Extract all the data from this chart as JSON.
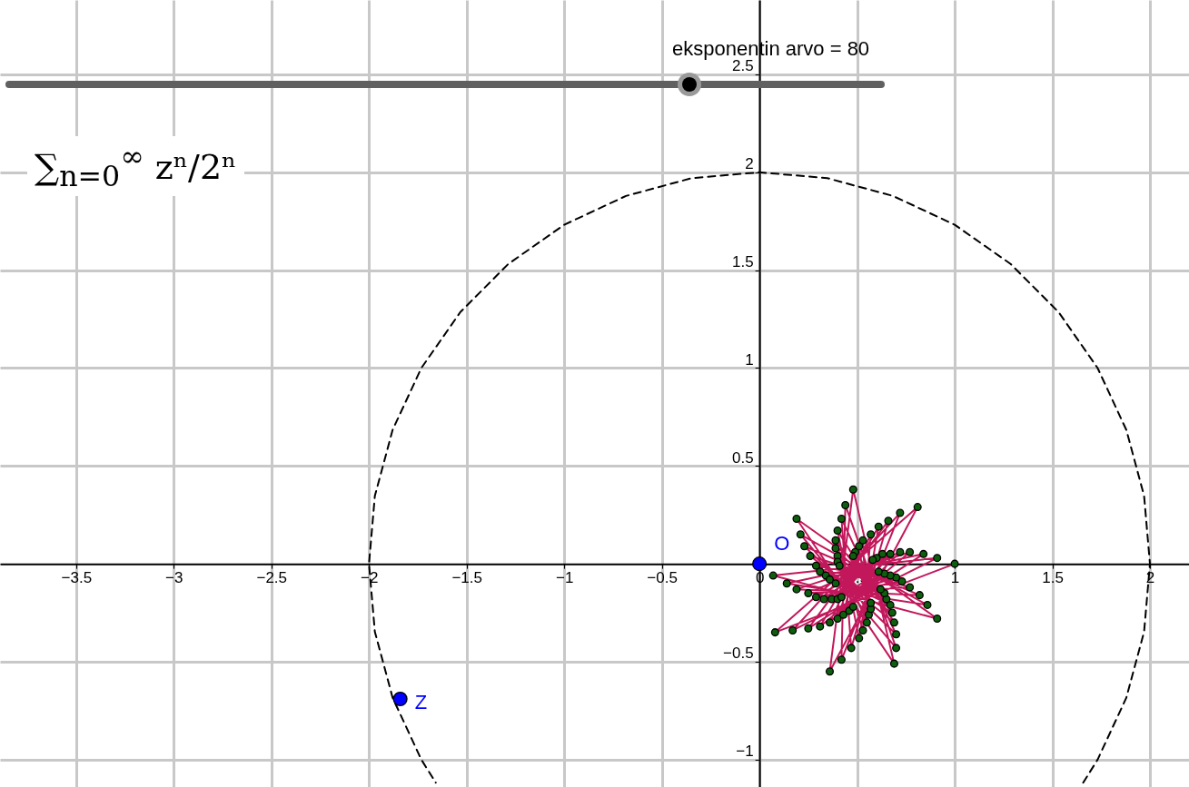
{
  "chart_data": {
    "type": "line",
    "annotations": [
      "eksponentin arvo = 80",
      "∑$_{n=0}$$^{∞}$ zⁿ/2ⁿ"
    ],
    "xlim": [
      -3.89,
      2.2
    ],
    "ylim": [
      -1.14,
      2.88
    ],
    "xticks": [
      -3.5,
      -3,
      -2.5,
      -2,
      -1.5,
      -1,
      -0.5,
      0,
      0.5,
      1,
      1.5,
      2
    ],
    "yticks": [
      -1,
      -0.5,
      0.5,
      1,
      1.5,
      2,
      2.5
    ],
    "grid": true,
    "series": [
      {
        "color": "#000000",
        "line_style": "dashed",
        "marker": "none",
        "x": [
          1.658,
          1.732,
          1.879,
          1.97,
          2,
          1.97,
          1.879,
          1.732,
          1.532,
          1.286,
          1,
          0.684,
          0.347,
          0,
          -0.347,
          -0.684,
          -1,
          -1.286,
          -1.532,
          -1.732,
          -1.879,
          -1.97,
          -2,
          -1.97,
          -1.879,
          -1.732,
          -1.658
        ],
        "values": [
          -1.118,
          -1,
          -0.684,
          -0.347,
          0,
          0.347,
          0.684,
          1,
          1.286,
          1.532,
          1.732,
          1.879,
          1.97,
          2,
          1.97,
          1.879,
          1.732,
          1.532,
          1.286,
          1,
          0.684,
          0.347,
          0,
          -0.347,
          -0.684,
          -1,
          -1.118
        ]
      },
      {
        "color": "#c2185b",
        "line_style": "solid",
        "marker": "none",
        "x": [
          1.0,
          0.08,
          0.81,
          0.36,
          0.48,
          0.69,
          0.19,
          0.91,
          0.07,
          0.91,
          0.17,
          0.72,
          0.42,
          0.44,
          0.7,
          0.21,
          0.86,
          0.14,
          0.84,
          0.25,
          0.66,
          0.47,
          0.42,
          0.7,
          0.23,
          0.82,
          0.19,
          0.77,
          0.31,
          0.61,
          0.51,
          0.4,
          0.69,
          0.26,
          0.77,
          0.25,
          0.72,
          0.36,
          0.57,
          0.53,
          0.39,
          0.68,
          0.29,
          0.73,
          0.29,
          0.67,
          0.4,
          0.53,
          0.55,
          0.39,
          0.67,
          0.31,
          0.7,
          0.33,
          0.63,
          0.43,
          0.51,
          0.56,
          0.4,
          0.65,
          0.34,
          0.67,
          0.37,
          0.6,
          0.46,
          0.49,
          0.57,
          0.4,
          0.64,
          0.36,
          0.64,
          0.4,
          0.58,
          0.48,
          0.48,
          0.57,
          0.41,
          0.62,
          0.39,
          0.61,
          0.42
        ],
        "values": [
          0.0,
          -0.35,
          0.29,
          -0.55,
          0.38,
          -0.51,
          0.23,
          -0.28,
          -0.06,
          0.03,
          -0.34,
          0.26,
          -0.49,
          0.3,
          -0.43,
          0.15,
          -0.21,
          -0.1,
          0.05,
          -0.33,
          0.22,
          -0.43,
          0.23,
          -0.36,
          0.09,
          -0.16,
          -0.13,
          0.06,
          -0.32,
          0.19,
          -0.38,
          0.17,
          -0.3,
          0.04,
          -0.12,
          -0.15,
          0.06,
          -0.3,
          0.15,
          -0.34,
          0.12,
          -0.25,
          -0.01,
          -0.09,
          -0.17,
          0.05,
          -0.28,
          0.12,
          -0.3,
          0.08,
          -0.21,
          -0.04,
          -0.07,
          -0.18,
          0.05,
          -0.26,
          0.09,
          -0.26,
          0.04,
          -0.18,
          -0.06,
          -0.06,
          -0.18,
          0.03,
          -0.24,
          0.06,
          -0.23,
          0.01,
          -0.15,
          -0.08,
          -0.05,
          -0.18,
          0.02,
          -0.22,
          0.04,
          -0.2,
          -0.01,
          -0.13,
          -0.1,
          -0.04,
          -0.17
        ]
      },
      {
        "type": "scatter",
        "color": "#0d5f0d",
        "marker": "circle",
        "x": [
          1.0,
          0.08,
          0.81,
          0.36,
          0.48,
          0.69,
          0.19,
          0.91,
          0.07,
          0.91,
          0.17,
          0.72,
          0.42,
          0.44,
          0.7,
          0.21,
          0.86,
          0.14,
          0.84,
          0.25,
          0.66,
          0.47,
          0.42,
          0.7,
          0.23,
          0.82,
          0.19,
          0.77,
          0.31,
          0.61,
          0.51,
          0.4,
          0.69,
          0.26,
          0.77,
          0.25,
          0.72,
          0.36,
          0.57,
          0.53,
          0.39,
          0.68,
          0.29,
          0.73,
          0.29,
          0.67,
          0.4,
          0.53,
          0.55,
          0.39,
          0.67,
          0.31,
          0.7,
          0.33,
          0.63,
          0.43,
          0.51,
          0.56,
          0.4,
          0.65,
          0.34,
          0.67,
          0.37,
          0.6,
          0.46,
          0.49,
          0.57,
          0.4,
          0.64,
          0.36,
          0.64,
          0.4,
          0.58,
          0.48,
          0.48,
          0.57,
          0.41,
          0.62,
          0.39,
          0.61,
          0.42
        ],
        "values": [
          0.0,
          -0.35,
          0.29,
          -0.55,
          0.38,
          -0.51,
          0.23,
          -0.28,
          -0.06,
          0.03,
          -0.34,
          0.26,
          -0.49,
          0.3,
          -0.43,
          0.15,
          -0.21,
          -0.1,
          0.05,
          -0.33,
          0.22,
          -0.43,
          0.23,
          -0.36,
          0.09,
          -0.16,
          -0.13,
          0.06,
          -0.32,
          0.19,
          -0.38,
          0.17,
          -0.3,
          0.04,
          -0.12,
          -0.15,
          0.06,
          -0.3,
          0.15,
          -0.34,
          0.12,
          -0.25,
          -0.01,
          -0.09,
          -0.17,
          0.05,
          -0.28,
          0.12,
          -0.3,
          0.08,
          -0.21,
          -0.04,
          -0.07,
          -0.18,
          0.05,
          -0.26,
          0.09,
          -0.26,
          0.04,
          -0.18,
          -0.06,
          -0.06,
          -0.18,
          0.03,
          -0.24,
          0.06,
          -0.23,
          0.01,
          -0.15,
          -0.08,
          -0.05,
          -0.18,
          0.02,
          -0.22,
          0.04,
          -0.2,
          -0.01,
          -0.13,
          -0.1,
          -0.04,
          -0.17
        ]
      },
      {
        "type": "scatter",
        "name": "O",
        "color": "#0000ff",
        "marker": "circle",
        "x": [
          0
        ],
        "values": [
          0
        ]
      },
      {
        "type": "scatter",
        "name": "Z",
        "color": "#0000ff",
        "marker": "circle",
        "x": [
          -1.84
        ],
        "values": [
          -0.69
        ]
      }
    ]
  }
}
